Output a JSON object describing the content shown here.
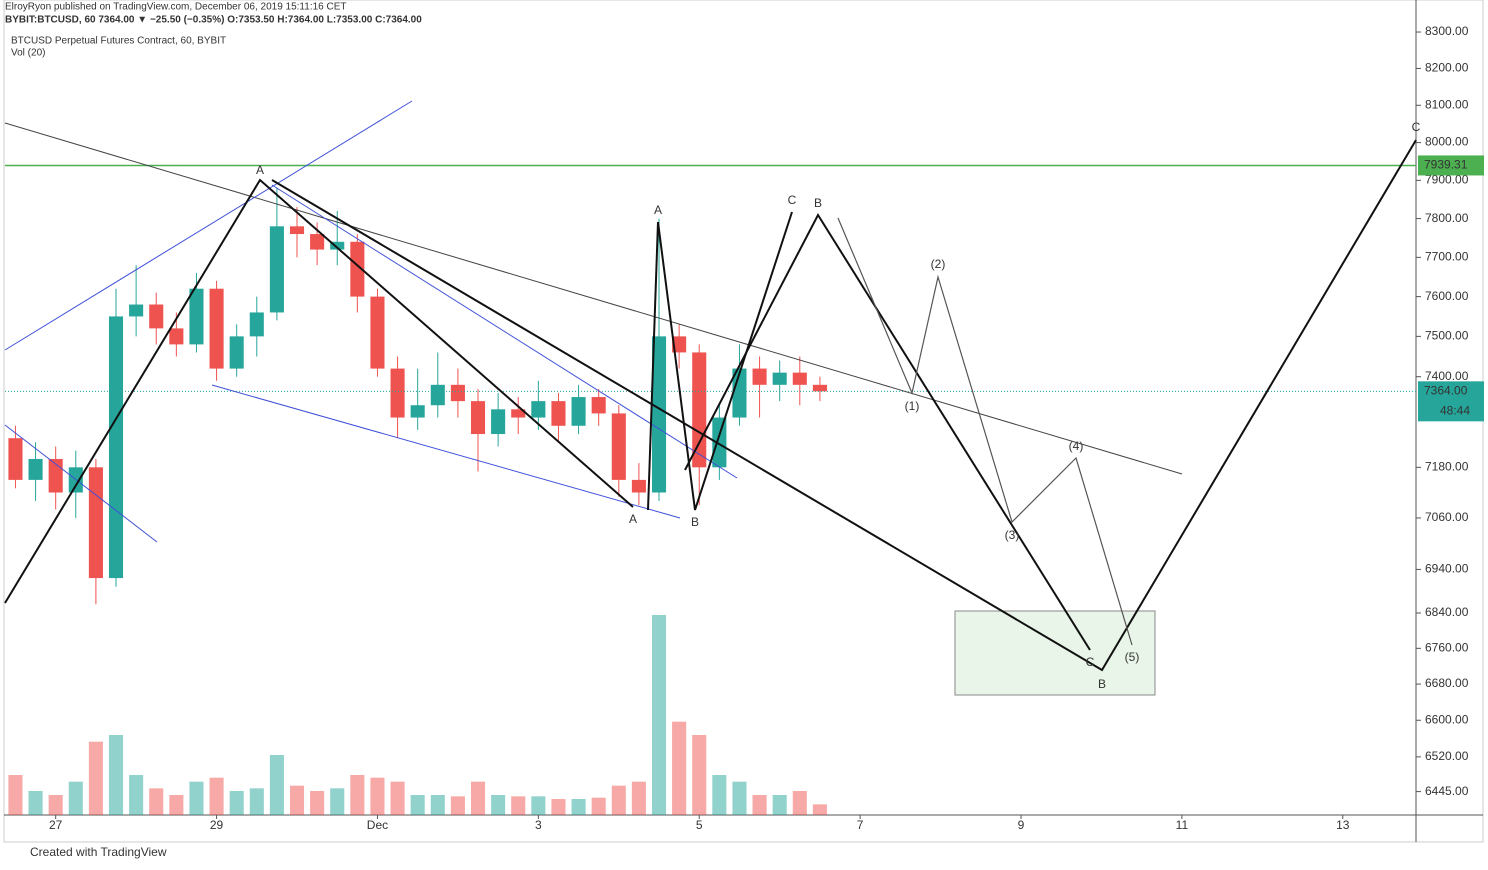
{
  "header": {
    "author_line": "ElroyRyon published on TradingView.com, December 06, 2019 15:11:16 CET",
    "symbol_line": "BYBIT:BTCUSD, 60  7364.00 ▼ −25.50 (−0.35%) O:7353.50 H:7364.00 L:7353.00 C:7364.00"
  },
  "footer": "Created with TradingView",
  "chart_data": {
    "type": "candlestick",
    "title": "BTCUSD Perpetual Futures Contract, 60, BYBIT",
    "x": [
      26.5,
      26.75,
      27.0,
      27.25,
      27.5,
      27.75,
      28.0,
      28.25,
      28.5,
      28.75,
      29.0,
      29.25,
      29.5,
      29.75,
      30.0,
      30.25,
      30.5,
      30.75,
      31.0,
      31.25,
      31.5,
      31.75,
      32.0,
      32.25,
      32.5,
      32.75,
      33.0,
      33.25,
      33.5,
      33.75,
      34.0,
      34.25,
      34.5,
      34.75,
      35.0,
      35.25,
      35.5,
      35.75,
      36.0,
      36.25,
      36.5
    ],
    "open": [
      7250,
      7150,
      7200,
      7120,
      7180,
      6920,
      7550,
      7580,
      7520,
      7480,
      7620,
      7420,
      7500,
      7560,
      7780,
      7760,
      7720,
      7740,
      7600,
      7420,
      7300,
      7330,
      7380,
      7340,
      7260,
      7320,
      7300,
      7340,
      7280,
      7350,
      7310,
      7150,
      7120,
      7500,
      7460,
      7180,
      7300,
      7420,
      7380,
      7410,
      7380
    ],
    "high": [
      7280,
      7240,
      7230,
      7220,
      7200,
      7620,
      7680,
      7610,
      7560,
      7660,
      7640,
      7530,
      7600,
      7880,
      7830,
      7790,
      7820,
      7760,
      7620,
      7450,
      7420,
      7460,
      7420,
      7370,
      7360,
      7350,
      7390,
      7360,
      7380,
      7370,
      7330,
      7190,
      7800,
      7530,
      7480,
      7330,
      7480,
      7450,
      7440,
      7450,
      7400
    ],
    "low": [
      7130,
      7100,
      7080,
      7060,
      6860,
      6900,
      7500,
      7480,
      7450,
      7460,
      7390,
      7400,
      7450,
      7540,
      7700,
      7680,
      7680,
      7560,
      7400,
      7250,
      7270,
      7300,
      7300,
      7170,
      7230,
      7260,
      7270,
      7240,
      7260,
      7280,
      7110,
      7090,
      7100,
      7420,
      7090,
      7150,
      7280,
      7300,
      7340,
      7330,
      7340
    ],
    "close": [
      7150,
      7200,
      7120,
      7180,
      6920,
      7550,
      7580,
      7520,
      7480,
      7620,
      7420,
      7500,
      7560,
      7780,
      7760,
      7720,
      7740,
      7600,
      7420,
      7300,
      7330,
      7380,
      7340,
      7260,
      7320,
      7300,
      7340,
      7280,
      7350,
      7310,
      7150,
      7120,
      7500,
      7460,
      7180,
      7300,
      7420,
      7380,
      7410,
      7380,
      7364
    ],
    "volume": {
      "name": "Vol (20)",
      "values": [
        30,
        18,
        15,
        25,
        55,
        60,
        30,
        20,
        15,
        25,
        28,
        18,
        20,
        45,
        22,
        18,
        20,
        30,
        28,
        25,
        15,
        15,
        14,
        25,
        15,
        14,
        14,
        12,
        12,
        13,
        22,
        25,
        150,
        70,
        60,
        30,
        25,
        15,
        15,
        18,
        8
      ]
    },
    "up_color": "#26a69a",
    "down_color": "#ef5350",
    "log_scale": true,
    "ylim": [
      6395,
      8389
    ],
    "yticks": [
      {
        "value": 8300,
        "label": "8300.00"
      },
      {
        "value": 8200,
        "label": "8200.00"
      },
      {
        "value": 8100,
        "label": "8100.00"
      },
      {
        "value": 8000,
        "label": "8000.00"
      },
      {
        "value": 7900,
        "label": "7900.00"
      },
      {
        "value": 7800,
        "label": "7800.00"
      },
      {
        "value": 7700,
        "label": "7700.00"
      },
      {
        "value": 7600,
        "label": "7600.00"
      },
      {
        "value": 7500,
        "label": "7500.00"
      },
      {
        "value": 7400,
        "label": "7400.00"
      },
      {
        "value": 7180,
        "label": "7180.00"
      },
      {
        "value": 7060,
        "label": "7060.00"
      },
      {
        "value": 6940,
        "label": "6940.00"
      },
      {
        "value": 6840,
        "label": "6840.00"
      },
      {
        "value": 6760,
        "label": "6760.00"
      },
      {
        "value": 6680,
        "label": "6680.00"
      },
      {
        "value": 6600,
        "label": "6600.00"
      },
      {
        "value": 6520,
        "label": "6520.00"
      },
      {
        "value": 6445,
        "label": "6445.00"
      }
    ],
    "xlim": [
      26.37,
      43.91
    ],
    "xticks": [
      27,
      29,
      {
        "value": 31,
        "label": "Dec"
      },
      {
        "value": 33,
        "label": "3"
      },
      {
        "value": 35,
        "label": "5"
      },
      {
        "value": 37,
        "label": "7"
      },
      {
        "value": 39,
        "label": "9"
      },
      {
        "value": 41,
        "label": "11"
      },
      {
        "value": 43,
        "label": "13"
      }
    ],
    "hline": {
      "value": 7939.31,
      "label": "7939.31",
      "color": "#4caf50"
    },
    "last_price": {
      "value": 7364,
      "label": "7364.00",
      "countdown": "48:44"
    },
    "annotations": [
      "A",
      "A",
      "B",
      "A",
      "B",
      "C",
      "B",
      "(1)",
      "(2)",
      "(3)",
      "(4)",
      "(5)",
      "C",
      "B",
      "C"
    ]
  }
}
